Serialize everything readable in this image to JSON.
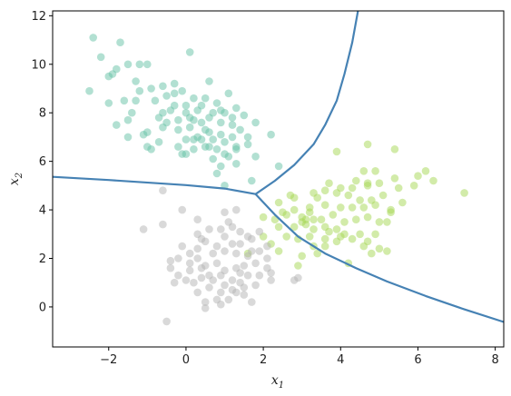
{
  "chart_data": {
    "type": "scatter",
    "xlim": [
      -3.45,
      8.22
    ],
    "ylim": [
      -1.65,
      12.2
    ],
    "x_ticks": [
      -2,
      0,
      2,
      4,
      6,
      8
    ],
    "y_ticks": [
      0,
      2,
      4,
      6,
      8,
      10,
      12
    ],
    "x_tick_labels": [
      "−2",
      "0",
      "2",
      "4",
      "6",
      "8"
    ],
    "y_tick_labels": [
      "0",
      "2",
      "4",
      "6",
      "8",
      "10",
      "12"
    ],
    "xlabel": {
      "var": "x",
      "sub": "1"
    },
    "ylabel": {
      "var": "x",
      "sub": "2"
    },
    "grid": false,
    "legend": null,
    "point_alpha": 0.5,
    "series": [
      {
        "color": "#66c2a5",
        "points": [
          [
            -2.4,
            11.1
          ],
          [
            -2.2,
            10.3
          ],
          [
            -1.7,
            10.9
          ],
          [
            -1.8,
            9.8
          ],
          [
            -1.5,
            10
          ],
          [
            -1.2,
            10
          ],
          [
            -1.0,
            10.0
          ],
          [
            0.1,
            10.5
          ],
          [
            -2.0,
            9.5
          ],
          [
            -1.9,
            9.6
          ],
          [
            -1.3,
            9.3
          ],
          [
            -2.5,
            8.9
          ],
          [
            -1.6,
            8.5
          ],
          [
            -1.2,
            8.9
          ],
          [
            -0.9,
            9.0
          ],
          [
            -0.6,
            9.1
          ],
          [
            -0.3,
            9.2
          ],
          [
            0.6,
            9.3
          ],
          [
            -2.0,
            8.4
          ],
          [
            -1.3,
            8.5
          ],
          [
            -0.8,
            8.5
          ],
          [
            -0.5,
            8.7
          ],
          [
            -0.3,
            8.8
          ],
          [
            -0.1,
            8.9
          ],
          [
            0.2,
            8.6
          ],
          [
            0.5,
            8.6
          ],
          [
            0.8,
            8.4
          ],
          [
            1.1,
            8.8
          ],
          [
            -1.4,
            8.0
          ],
          [
            -0.6,
            8.0
          ],
          [
            -0.3,
            8.3
          ],
          [
            0.0,
            8.0
          ],
          [
            0.3,
            8.1
          ],
          [
            0.7,
            8.0
          ],
          [
            1.0,
            8.0
          ],
          [
            1.3,
            8.2
          ],
          [
            1.5,
            7.9
          ],
          [
            -1.8,
            7.5
          ],
          [
            -1.5,
            7.7
          ],
          [
            -1.0,
            7.2
          ],
          [
            -0.5,
            7.6
          ],
          [
            -0.2,
            7.3
          ],
          [
            0.1,
            7.4
          ],
          [
            0.4,
            7.6
          ],
          [
            0.6,
            7.8
          ],
          [
            0.9,
            7.6
          ],
          [
            1.2,
            7.5
          ],
          [
            1.4,
            7.3
          ],
          [
            1.8,
            7.6
          ],
          [
            -1.5,
            7.0
          ],
          [
            -1.1,
            7.1
          ],
          [
            -0.7,
            6.8
          ],
          [
            0.0,
            6.9
          ],
          [
            0.3,
            7.0
          ],
          [
            0.6,
            7.2
          ],
          [
            0.9,
            7.1
          ],
          [
            1.2,
            7.0
          ],
          [
            1.6,
            7.0
          ],
          [
            2.2,
            7.1
          ],
          [
            -1.0,
            6.6
          ],
          [
            -0.9,
            6.5
          ],
          [
            -0.2,
            6.6
          ],
          [
            0.2,
            6.5
          ],
          [
            0.5,
            6.6
          ],
          [
            0.8,
            6.5
          ],
          [
            1.3,
            6.5
          ],
          [
            1.6,
            6.7
          ],
          [
            -0.1,
            6.3
          ],
          [
            0.0,
            6.3
          ],
          [
            0.7,
            6.1
          ],
          [
            1.1,
            6.2
          ],
          [
            1.8,
            6.2
          ],
          [
            1.3,
            5.9
          ],
          [
            0.9,
            5.8
          ],
          [
            2.4,
            5.8
          ],
          [
            0.2,
            6.9
          ],
          [
            0.5,
            7.3
          ],
          [
            1.0,
            6.3
          ],
          [
            0.4,
            6.9
          ],
          [
            -0.4,
            8.1
          ],
          [
            0.0,
            8.3
          ],
          [
            0.4,
            8.3
          ],
          [
            0.9,
            8.1
          ],
          [
            -0.7,
            7.8
          ],
          [
            1.3,
            6.6
          ],
          [
            0.6,
            6.6
          ],
          [
            0.1,
            7.8
          ],
          [
            -0.2,
            7.7
          ],
          [
            -0.6,
            7.4
          ],
          [
            1.0,
            6.8
          ],
          [
            0.8,
            5.5
          ],
          [
            1.7,
            5.2
          ],
          [
            1.0,
            5.0
          ],
          [
            0.7,
            6.9
          ],
          [
            1.2,
            7.8
          ],
          [
            0.2,
            7.7
          ]
        ]
      },
      {
        "color": "#a6d854",
        "points": [
          [
            4.7,
            6.7
          ],
          [
            5.4,
            6.5
          ],
          [
            3.9,
            6.4
          ],
          [
            6.2,
            5.6
          ],
          [
            6.0,
            5.4
          ],
          [
            4.6,
            5.6
          ],
          [
            4.9,
            5.6
          ],
          [
            5.4,
            5.3
          ],
          [
            4.4,
            5.2
          ],
          [
            4.7,
            5.1
          ],
          [
            5.0,
            5.1
          ],
          [
            3.7,
            5.1
          ],
          [
            2.7,
            4.6
          ],
          [
            3.3,
            4.7
          ],
          [
            3.6,
            4.8
          ],
          [
            4.0,
            4.9
          ],
          [
            4.3,
            4.9
          ],
          [
            4.7,
            5.0
          ],
          [
            5.5,
            4.9
          ],
          [
            5.9,
            5.0
          ],
          [
            6.4,
            5.2
          ],
          [
            7.2,
            4.7
          ],
          [
            2.4,
            4.3
          ],
          [
            2.8,
            4.5
          ],
          [
            3.4,
            4.5
          ],
          [
            3.9,
            4.7
          ],
          [
            4.2,
            4.6
          ],
          [
            4.5,
            4.4
          ],
          [
            4.8,
            4.4
          ],
          [
            5.1,
            4.6
          ],
          [
            5.6,
            4.3
          ],
          [
            2.8,
            4.0
          ],
          [
            3.2,
            3.9
          ],
          [
            3.6,
            4.2
          ],
          [
            4.0,
            4.1
          ],
          [
            4.3,
            4.1
          ],
          [
            4.6,
            4.1
          ],
          [
            4.9,
            4.2
          ],
          [
            5.3,
            4.0
          ],
          [
            2.0,
            3.7
          ],
          [
            2.3,
            3.6
          ],
          [
            2.6,
            3.8
          ],
          [
            3.0,
            3.7
          ],
          [
            3.3,
            3.6
          ],
          [
            3.5,
            3.6
          ],
          [
            3.8,
            3.8
          ],
          [
            4.1,
            3.5
          ],
          [
            4.4,
            3.6
          ],
          [
            4.7,
            3.7
          ],
          [
            5.0,
            3.5
          ],
          [
            5.2,
            3.5
          ],
          [
            2.4,
            3.3
          ],
          [
            2.8,
            3.3
          ],
          [
            3.1,
            3.4
          ],
          [
            3.3,
            3.2
          ],
          [
            3.6,
            3.3
          ],
          [
            3.9,
            3.2
          ],
          [
            4.1,
            3.0
          ],
          [
            4.5,
            3.0
          ],
          [
            2.6,
            2.9
          ],
          [
            2.9,
            2.8
          ],
          [
            3.2,
            2.9
          ],
          [
            3.6,
            2.8
          ],
          [
            3.9,
            2.7
          ],
          [
            4.3,
            2.8
          ],
          [
            4.7,
            2.7
          ],
          [
            2.0,
            2.9
          ],
          [
            3.3,
            2.5
          ],
          [
            4.0,
            2.9
          ],
          [
            4.6,
            2.5
          ],
          [
            5.0,
            2.4
          ],
          [
            5.2,
            2.3
          ],
          [
            2.4,
            2.3
          ],
          [
            3.0,
            2.1
          ],
          [
            3.4,
            2.2
          ],
          [
            2.2,
            2.6
          ],
          [
            1.6,
            2.2
          ],
          [
            2.9,
            1.7
          ],
          [
            3.6,
            2.5
          ],
          [
            4.8,
            2.2
          ],
          [
            4.2,
            1.8
          ],
          [
            3.1,
            3.6
          ],
          [
            3.7,
            3.1
          ],
          [
            2.5,
            3.9
          ],
          [
            3.0,
            3.5
          ],
          [
            4.9,
            3.0
          ],
          [
            5.3,
            3.9
          ],
          [
            3.2,
            4.1
          ]
        ]
      },
      {
        "color": "#b3b3b3",
        "points": [
          [
            -0.6,
            4.8
          ],
          [
            -0.1,
            4.0
          ],
          [
            -0.6,
            3.4
          ],
          [
            -1.1,
            3.2
          ],
          [
            0.3,
            3.6
          ],
          [
            1.0,
            3.9
          ],
          [
            1.3,
            4.0
          ],
          [
            1.4,
            3.1
          ],
          [
            0.3,
            3.0
          ],
          [
            0.5,
            2.7
          ],
          [
            0.6,
            3.2
          ],
          [
            1.0,
            2.9
          ],
          [
            1.2,
            3.3
          ],
          [
            1.4,
            2.6
          ],
          [
            1.7,
            2.8
          ],
          [
            2.1,
            2.5
          ],
          [
            -0.1,
            2.5
          ],
          [
            0.3,
            2.4
          ],
          [
            0.7,
            2.2
          ],
          [
            1.0,
            2.3
          ],
          [
            1.3,
            2.2
          ],
          [
            1.6,
            2.1
          ],
          [
            1.9,
            2.3
          ],
          [
            -0.2,
            2.0
          ],
          [
            0.1,
            1.8
          ],
          [
            0.3,
            2.0
          ],
          [
            0.5,
            1.7
          ],
          [
            0.8,
            1.8
          ],
          [
            1.0,
            1.5
          ],
          [
            1.3,
            1.6
          ],
          [
            1.5,
            1.7
          ],
          [
            1.8,
            1.8
          ],
          [
            2.1,
            1.6
          ],
          [
            -0.4,
            1.6
          ],
          [
            -0.2,
            1.3
          ],
          [
            0.1,
            1.5
          ],
          [
            0.4,
            1.2
          ],
          [
            0.6,
            1.3
          ],
          [
            0.9,
            1.3
          ],
          [
            1.2,
            1.1
          ],
          [
            1.4,
            1.0
          ],
          [
            1.6,
            1.3
          ],
          [
            1.9,
            1.3
          ],
          [
            2.2,
            1.4
          ],
          [
            -0.4,
            1.9
          ],
          [
            0.2,
            1.0
          ],
          [
            0.6,
            0.8
          ],
          [
            0.9,
            0.6
          ],
          [
            1.2,
            0.7
          ],
          [
            1.5,
            0.8
          ],
          [
            1.8,
            0.9
          ],
          [
            2.2,
            1.1
          ],
          [
            0.3,
            0.6
          ],
          [
            0.8,
            0.3
          ],
          [
            1.1,
            0.3
          ],
          [
            1.3,
            0.6
          ],
          [
            1.5,
            0.5
          ],
          [
            0.5,
            0.2
          ],
          [
            0.9,
            0.1
          ],
          [
            1.7,
            0.2
          ],
          [
            0.5,
            -0.05
          ],
          [
            -0.5,
            -0.6
          ],
          [
            2.8,
            1.1
          ],
          [
            2.9,
            1.2
          ],
          [
            1.7,
            2.3
          ],
          [
            1.6,
            2.9
          ],
          [
            1.1,
            3.5
          ],
          [
            0.7,
            1.1
          ],
          [
            0.0,
            1.1
          ],
          [
            0.4,
            1.6
          ],
          [
            0.1,
            2.2
          ],
          [
            1.0,
            0.9
          ],
          [
            1.4,
            1.4
          ],
          [
            0.9,
            3.2
          ],
          [
            1.2,
            2.6
          ],
          [
            0.4,
            2.8
          ],
          [
            -0.3,
            1.0
          ],
          [
            2.1,
            2.0
          ],
          [
            1.9,
            3.1
          ],
          [
            0.8,
            2.5
          ]
        ]
      }
    ],
    "boundaries": [
      {
        "color": "#4682b4",
        "points": [
          [
            -3.45,
            5.36
          ],
          [
            -2,
            5.23
          ],
          [
            0,
            5.02
          ],
          [
            1,
            4.88
          ],
          [
            1.8,
            4.65
          ]
        ]
      },
      {
        "color": "#4682b4",
        "points": [
          [
            1.8,
            4.65
          ],
          [
            2.3,
            5.2
          ],
          [
            2.8,
            5.85
          ],
          [
            3.3,
            6.7
          ],
          [
            3.6,
            7.5
          ],
          [
            3.9,
            8.5
          ],
          [
            4.1,
            9.6
          ],
          [
            4.3,
            10.9
          ],
          [
            4.45,
            12.2
          ]
        ]
      },
      {
        "color": "#4682b4",
        "points": [
          [
            1.8,
            4.65
          ],
          [
            2.3,
            3.8
          ],
          [
            2.9,
            2.9
          ],
          [
            3.6,
            2.2
          ],
          [
            4.4,
            1.6
          ],
          [
            5.2,
            1.05
          ],
          [
            6.2,
            0.45
          ],
          [
            7.2,
            -0.1
          ],
          [
            8.22,
            -0.62
          ]
        ]
      }
    ]
  }
}
